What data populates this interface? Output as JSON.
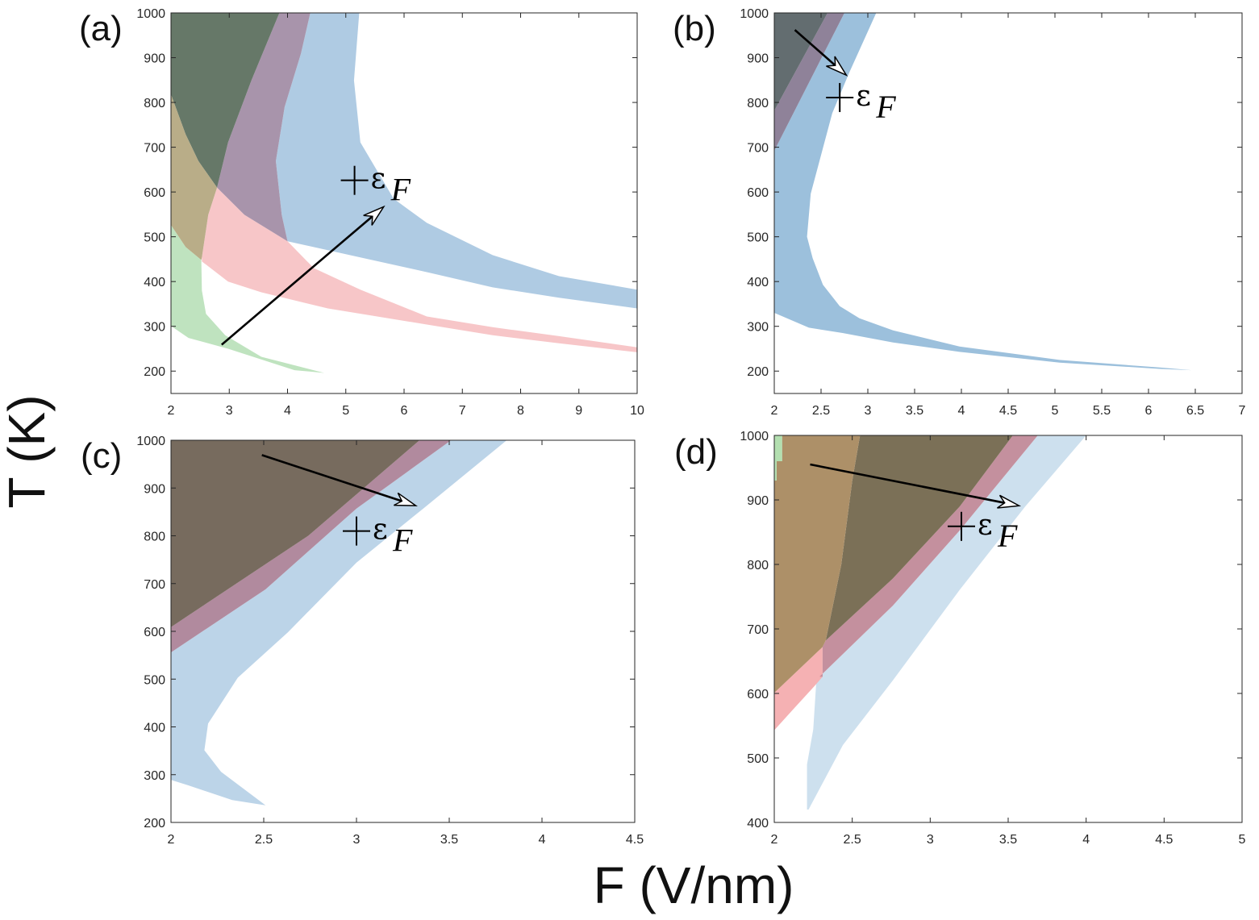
{
  "chart_data": {
    "xlabel": "F (V/nm)",
    "ylabel": "T (K)",
    "panels": [
      {
        "label": "(a)",
        "type": "area",
        "xlim": [
          2,
          10
        ],
        "ylim": [
          150,
          1000
        ],
        "xticks": [
          2,
          3,
          4,
          5,
          6,
          7,
          8,
          9,
          10
        ],
        "yticks": [
          200,
          300,
          400,
          500,
          600,
          700,
          800,
          900,
          1000
        ],
        "regions": [
          {
            "color": "#afcbe3",
            "points": [
              [
                4.39,
                1000
              ],
              [
                5.23,
                1000
              ],
              [
                5.14,
                849
              ],
              [
                5.25,
                711
              ],
              [
                5.82,
                585
              ],
              [
                6.39,
                531
              ],
              [
                7.52,
                459
              ],
              [
                8.66,
                412
              ],
              [
                10,
                382
              ],
              [
                10,
                340
              ],
              [
                8.66,
                364
              ],
              [
                7.52,
                387
              ],
              [
                6.39,
                421
              ],
              [
                5.25,
                454
              ],
              [
                4.0,
                490
              ],
              [
                3.9,
                549
              ],
              [
                3.8,
                669
              ],
              [
                3.95,
                790
              ],
              [
                4.23,
                909
              ]
            ]
          },
          {
            "color": "#f7c6c8",
            "points": [
              [
                2.79,
                610
              ],
              [
                3.26,
                549
              ],
              [
                4.0,
                490
              ],
              [
                4.45,
                430
              ],
              [
                5.25,
                382
              ],
              [
                6.39,
                322
              ],
              [
                7.52,
                298
              ],
              [
                8.66,
                278
              ],
              [
                10,
                253
              ],
              [
                10,
                242
              ],
              [
                8.66,
                262
              ],
              [
                7.52,
                280
              ],
              [
                6.39,
                304
              ],
              [
                4.69,
                340
              ],
              [
                3.55,
                376
              ],
              [
                2.98,
                400
              ],
              [
                2.53,
                445
              ],
              [
                2.53,
                454
              ],
              [
                2.64,
                549
              ]
            ]
          },
          {
            "color": "#a894ab",
            "points": [
              [
                3.86,
                1000
              ],
              [
                4.39,
                1000
              ],
              [
                4.23,
                909
              ],
              [
                3.95,
                790
              ],
              [
                3.8,
                669
              ],
              [
                3.9,
                549
              ],
              [
                4.0,
                490
              ],
              [
                3.26,
                549
              ],
              [
                2.79,
                610
              ],
              [
                2.98,
                711
              ],
              [
                3.38,
                849
              ]
            ]
          },
          {
            "color": "#667868",
            "points": [
              [
                2,
                1000
              ],
              [
                3.86,
                1000
              ],
              [
                3.38,
                849
              ],
              [
                2.98,
                711
              ],
              [
                2.79,
                610
              ],
              [
                2.47,
                669
              ],
              [
                2.25,
                729
              ],
              [
                2,
                818
              ]
            ]
          },
          {
            "color": "#b9ad88",
            "points": [
              [
                2,
                818
              ],
              [
                2.25,
                729
              ],
              [
                2.47,
                669
              ],
              [
                2.79,
                610
              ],
              [
                2.64,
                549
              ],
              [
                2.53,
                454
              ],
              [
                2.52,
                448
              ],
              [
                2.25,
                477
              ],
              [
                2,
                526
              ]
            ]
          },
          {
            "color": "#bfe3bf",
            "points": [
              [
                2,
                526
              ],
              [
                2.25,
                477
              ],
              [
                2.52,
                448
              ],
              [
                2.53,
                380
              ],
              [
                2.6,
                328
              ],
              [
                2.93,
                280
              ],
              [
                3.55,
                232
              ],
              [
                4.63,
                196
              ],
              [
                4.12,
                202
              ],
              [
                2.98,
                250
              ],
              [
                2.3,
                274
              ],
              [
                2,
                301
              ]
            ]
          }
        ],
        "arrow": {
          "from": [
            2.87,
            259
          ],
          "to": [
            5.65,
            567
          ]
        },
        "marker": {
          "at": [
            5.15,
            626
          ],
          "symbol": "ε",
          "subscript": "F"
        }
      },
      {
        "label": "(b)",
        "type": "area",
        "xlim": [
          2,
          7
        ],
        "ylim": [
          150,
          1000
        ],
        "xticks": [
          2,
          2.5,
          3,
          3.5,
          4,
          4.5,
          5,
          5.5,
          6,
          6.5,
          7
        ],
        "yticks": [
          200,
          300,
          400,
          500,
          600,
          700,
          800,
          900,
          1000
        ],
        "regions": [
          {
            "color": "#9cc0dc",
            "points": [
              [
                2.75,
                1000
              ],
              [
                3.09,
                1000
              ],
              [
                2.8,
                866
              ],
              [
                2.62,
                776
              ],
              [
                2.52,
                698
              ],
              [
                2.39,
                596
              ],
              [
                2.35,
                500
              ],
              [
                2.41,
                452
              ],
              [
                2.52,
                393
              ],
              [
                2.7,
                345
              ],
              [
                2.91,
                318
              ],
              [
                3.27,
                291
              ],
              [
                3.98,
                255
              ],
              [
                5.05,
                225
              ],
              [
                6.12,
                208
              ],
              [
                6.46,
                202
              ],
              [
                6.12,
                205
              ],
              [
                5.05,
                219
              ],
              [
                3.98,
                243
              ],
              [
                3.27,
                264
              ],
              [
                2.73,
                285
              ],
              [
                2.37,
                297
              ],
              [
                2,
                330
              ],
              [
                2,
                692
              ]
            ]
          },
          {
            "color": "#8f8299",
            "points": [
              [
                2.57,
                1000
              ],
              [
                2.75,
                1000
              ],
              [
                2,
                692
              ],
              [
                2,
                782
              ]
            ]
          },
          {
            "color": "#636d70",
            "points": [
              [
                2,
                1000
              ],
              [
                2.57,
                1000
              ],
              [
                2,
                782
              ]
            ]
          }
        ],
        "arrow": {
          "from": [
            2.22,
            962
          ],
          "to": [
            2.77,
            861
          ]
        },
        "marker": {
          "at": [
            2.7,
            811
          ],
          "symbol": "ε",
          "subscript": "F"
        }
      },
      {
        "label": "(c)",
        "type": "area",
        "xlim": [
          2,
          4.5
        ],
        "ylim": [
          200,
          1000
        ],
        "xticks": [
          2,
          2.5,
          3,
          3.5,
          4,
          4.5
        ],
        "yticks": [
          200,
          300,
          400,
          500,
          600,
          700,
          800,
          900,
          1000
        ],
        "regions": [
          {
            "color": "#bcd4e8",
            "points": [
              [
                3.51,
                1000
              ],
              [
                3.81,
                1000
              ],
              [
                3.36,
                857
              ],
              [
                3.0,
                744
              ],
              [
                2.63,
                598
              ],
              [
                2.36,
                503
              ],
              [
                2.2,
                407
              ],
              [
                2.18,
                351
              ],
              [
                2.27,
                306
              ],
              [
                2.51,
                236
              ],
              [
                2.33,
                247
              ],
              [
                2.09,
                278
              ],
              [
                2,
                289
              ],
              [
                2,
                556
              ],
              [
                2.51,
                688
              ],
              [
                3.0,
                857
              ]
            ]
          },
          {
            "color": "#b18a9e",
            "points": [
              [
                3.34,
                1000
              ],
              [
                3.51,
                1000
              ],
              [
                3.0,
                857
              ],
              [
                2.51,
                688
              ],
              [
                2,
                556
              ],
              [
                2,
                609
              ],
              [
                2.74,
                800
              ]
            ]
          },
          {
            "color": "#776b5e",
            "points": [
              [
                2,
                1000
              ],
              [
                3.34,
                1000
              ],
              [
                2.74,
                800
              ],
              [
                2,
                609
              ]
            ]
          }
        ],
        "arrow": {
          "from": [
            2.49,
            969
          ],
          "to": [
            3.32,
            863
          ]
        },
        "marker": {
          "at": [
            3.0,
            810
          ],
          "symbol": "ε",
          "subscript": "F"
        }
      },
      {
        "label": "(d)",
        "type": "area",
        "xlim": [
          2,
          5
        ],
        "ylim": [
          400,
          1000
        ],
        "xticks": [
          2,
          2.5,
          3,
          3.5,
          4,
          4.5,
          5
        ],
        "yticks": [
          400,
          500,
          600,
          700,
          800,
          900,
          1000
        ],
        "regions": [
          {
            "color": "#cde0ee",
            "points": [
              [
                3.69,
                1000
              ],
              [
                4.0,
                1000
              ],
              [
                3.61,
                890
              ],
              [
                3.19,
                761
              ],
              [
                2.76,
                620
              ],
              [
                2.44,
                520
              ],
              [
                2.22,
                420
              ],
              [
                2.21,
                420
              ],
              [
                2.21,
                490
              ],
              [
                2.25,
                544
              ],
              [
                2.27,
                620
              ],
              [
                2.29,
                626
              ],
              [
                2.76,
                736
              ],
              [
                3.19,
                853
              ]
            ]
          },
          {
            "color": "#f5b1b3",
            "points": [
              [
                2,
                601
              ],
              [
                2.31,
                672
              ],
              [
                2.31,
                626
              ],
              [
                2.26,
                612
              ],
              [
                2.12,
                575
              ],
              [
                2,
                543
              ]
            ]
          },
          {
            "color": "#c4909e",
            "points": [
              [
                3.53,
                1000
              ],
              [
                3.69,
                1000
              ],
              [
                3.19,
                853
              ],
              [
                2.76,
                736
              ],
              [
                2.29,
                626
              ],
              [
                2.31,
                626
              ],
              [
                2.31,
                672
              ],
              [
                2.33,
                682
              ],
              [
                2.76,
                778
              ],
              [
                3.19,
                890
              ]
            ]
          },
          {
            "color": "#7b7057",
            "points": [
              [
                2.55,
                1000
              ],
              [
                3.53,
                1000
              ],
              [
                3.19,
                890
              ],
              [
                2.76,
                778
              ],
              [
                2.33,
                682
              ],
              [
                2.43,
                800
              ],
              [
                2.5,
                930
              ]
            ]
          },
          {
            "color": "#ad9068",
            "points": [
              [
                2,
                930
              ],
              [
                2.015,
                930
              ],
              [
                2.015,
                960
              ],
              [
                2.05,
                960
              ],
              [
                2.05,
                1000
              ],
              [
                2.55,
                1000
              ],
              [
                2.5,
                930
              ],
              [
                2.43,
                800
              ],
              [
                2.33,
                682
              ],
              [
                2.31,
                672
              ],
              [
                2,
                601
              ]
            ]
          },
          {
            "color": "#b3dfb0",
            "points": [
              [
                2,
                1000
              ],
              [
                2.05,
                1000
              ],
              [
                2.05,
                960
              ],
              [
                2.015,
                960
              ],
              [
                2.015,
                930
              ],
              [
                2,
                930
              ]
            ]
          }
        ],
        "arrow": {
          "from": [
            2.23,
            955
          ],
          "to": [
            3.57,
            891
          ]
        },
        "marker": {
          "at": [
            3.2,
            859
          ],
          "symbol": "ε",
          "subscript": "F"
        }
      }
    ]
  }
}
